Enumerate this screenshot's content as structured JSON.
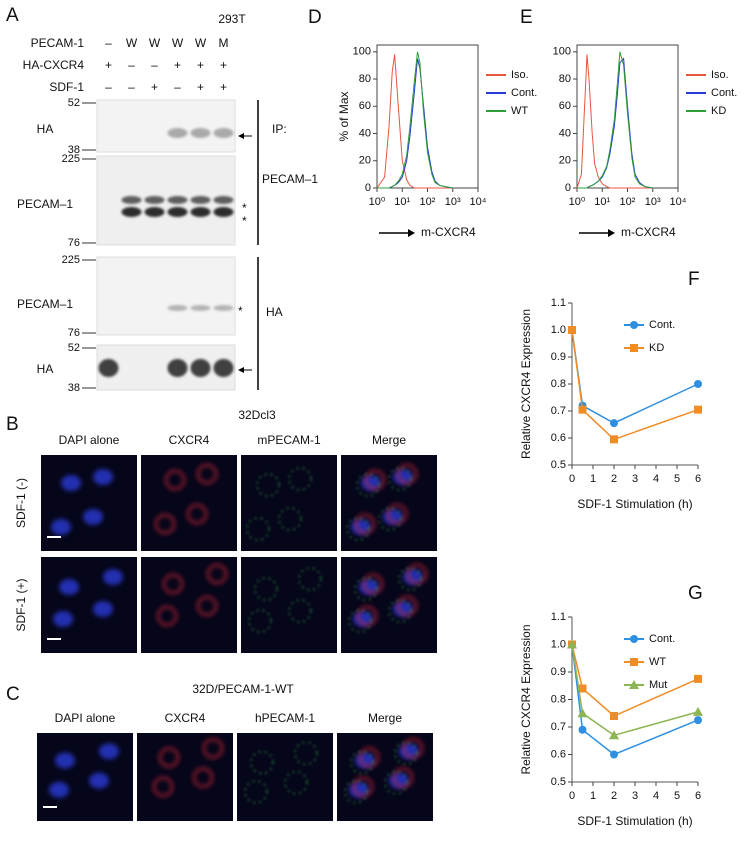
{
  "panel_a": {
    "label": "A",
    "cell_line": "293T",
    "conditions": [
      {
        "name": "PECAM-1",
        "lanes": [
          "–",
          "W",
          "W",
          "W",
          "W",
          "M"
        ]
      },
      {
        "name": "HA-CXCR4",
        "lanes": [
          "+",
          "–",
          "–",
          "+",
          "+",
          "+"
        ]
      },
      {
        "name": "SDF-1",
        "lanes": [
          "–",
          "–",
          "+",
          "–",
          "+",
          "+"
        ]
      }
    ],
    "blots": [
      {
        "name": "HA",
        "markers": [
          52,
          38
        ]
      },
      {
        "name": "PECAM–1",
        "markers": [
          225,
          76
        ]
      },
      {
        "name": "PECAM–1",
        "markers": [
          225,
          76
        ]
      },
      {
        "name": "HA",
        "markers": [
          52,
          38
        ]
      }
    ],
    "ip_label": "IP:",
    "ip_groups": [
      "PECAM–1",
      "HA"
    ],
    "asterisks": [
      "*",
      "*",
      "*"
    ]
  },
  "panel_b": {
    "label": "B",
    "title": "32Dcl3",
    "columns": [
      "DAPI alone",
      "CXCR4",
      "mPECAM-1",
      "Merge"
    ],
    "rows": [
      "SDF-1 (-)",
      "SDF-1 (+)"
    ]
  },
  "panel_c": {
    "label": "C",
    "title": "32D/PECAM-1-WT",
    "columns": [
      "DAPI alone",
      "CXCR4",
      "hPECAM-1",
      "Merge"
    ]
  },
  "chart_data": [
    {
      "type": "line",
      "panel_label": "D",
      "xlabel": "m-CXCR4",
      "ylabel": "% of Max",
      "xscale": "log",
      "frame": true,
      "legend": "right",
      "xlim": [
        1,
        10000
      ],
      "xticks": [
        {
          "value": 1,
          "label": "10⁰"
        },
        {
          "value": 10,
          "label": "10¹"
        },
        {
          "value": 100,
          "label": "10²"
        },
        {
          "value": 1000,
          "label": "10³"
        },
        {
          "value": 10000,
          "label": "10⁴"
        }
      ],
      "ylim": [
        0,
        105
      ],
      "yticks": [
        0,
        20,
        40,
        60,
        80,
        100
      ],
      "x": [
        1,
        2,
        3,
        4,
        5,
        7,
        10,
        15,
        20,
        30,
        40,
        50,
        70,
        100,
        150,
        200,
        300,
        500,
        1000
      ],
      "series": [
        {
          "name": "Iso.",
          "color": "#e8553f",
          "values": [
            0,
            8,
            45,
            85,
            98,
            60,
            20,
            6,
            2,
            0,
            0,
            0,
            0,
            0,
            0,
            0,
            0,
            0,
            0
          ]
        },
        {
          "name": "Cont.",
          "color": "#2a3bd6",
          "values": [
            0,
            0,
            0,
            1,
            2,
            4,
            8,
            20,
            38,
            70,
            95,
            88,
            60,
            30,
            12,
            5,
            2,
            1,
            0
          ]
        },
        {
          "name": "WT",
          "color": "#2e9e3a",
          "values": [
            0,
            0,
            0,
            1,
            2,
            5,
            10,
            24,
            45,
            78,
            100,
            92,
            55,
            26,
            10,
            4,
            2,
            1,
            0
          ]
        }
      ]
    },
    {
      "type": "line",
      "panel_label": "E",
      "xlabel": "m-CXCR4",
      "xscale": "log",
      "frame": true,
      "legend": "right",
      "xlim": [
        1,
        10000
      ],
      "xticks": [
        {
          "value": 1,
          "label": "10⁰"
        },
        {
          "value": 10,
          "label": "10¹"
        },
        {
          "value": 100,
          "label": "10²"
        },
        {
          "value": 1000,
          "label": "10³"
        },
        {
          "value": 10000,
          "label": "10⁴"
        }
      ],
      "ylim": [
        0,
        105
      ],
      "yticks": [
        0,
        20,
        40,
        60,
        80,
        100
      ],
      "x": [
        1,
        1.5,
        2,
        2.5,
        3,
        4,
        5,
        7,
        10,
        15,
        20,
        30,
        40,
        50,
        70,
        100,
        150,
        200,
        300,
        500,
        1000
      ],
      "series": [
        {
          "name": "Iso.",
          "color": "#e8553f",
          "values": [
            0,
            10,
            60,
            98,
            80,
            40,
            18,
            8,
            3,
            1,
            0,
            0,
            0,
            0,
            0,
            0,
            0,
            0,
            0,
            0,
            0
          ]
        },
        {
          "name": "Cont.",
          "color": "#2a3bd6",
          "values": [
            0,
            0,
            0,
            0,
            1,
            2,
            3,
            5,
            8,
            15,
            25,
            45,
            70,
            92,
            95,
            60,
            25,
            10,
            4,
            1,
            0
          ]
        },
        {
          "name": "KD",
          "color": "#2e9e3a",
          "values": [
            0,
            0,
            0,
            0,
            1,
            2,
            3,
            5,
            9,
            16,
            28,
            50,
            78,
            100,
            90,
            55,
            22,
            8,
            3,
            1,
            0
          ]
        }
      ]
    },
    {
      "type": "line",
      "panel_label": "F",
      "xlabel": "SDF-1 Stimulation (h)",
      "ylabel": "Relative CXCR4  Expression",
      "legend": "upper right",
      "xlim": [
        0,
        6
      ],
      "xticks": [
        0,
        1,
        2,
        3,
        4,
        5,
        6
      ],
      "ylim": [
        0.5,
        1.1
      ],
      "yticks": [
        0.5,
        0.6,
        0.7,
        0.8,
        0.9,
        {
          "value": 1,
          "label": "1.0"
        },
        1.1
      ],
      "x": [
        0,
        0.5,
        2,
        6
      ],
      "series": [
        {
          "name": "Cont.",
          "color": "#2f8fe0",
          "marker": "circle",
          "values": [
            1.0,
            0.72,
            0.655,
            0.8
          ]
        },
        {
          "name": "KD",
          "color": "#f08c26",
          "marker": "square",
          "values": [
            1.0,
            0.705,
            0.595,
            0.705
          ]
        }
      ]
    },
    {
      "type": "line",
      "panel_label": "G",
      "xlabel": "SDF-1 Stimulation (h)",
      "ylabel": "Relative CXCR4  Expression",
      "legend": "upper right",
      "xlim": [
        0,
        6
      ],
      "xticks": [
        0,
        1,
        2,
        3,
        4,
        5,
        6
      ],
      "ylim": [
        0.5,
        1.1
      ],
      "yticks": [
        0.5,
        0.6,
        0.7,
        0.8,
        0.9,
        {
          "value": 1,
          "label": "1.0"
        },
        1.1
      ],
      "x": [
        0,
        0.5,
        2,
        6
      ],
      "series": [
        {
          "name": "Cont.",
          "color": "#2f8fe0",
          "marker": "circle",
          "values": [
            1.0,
            0.69,
            0.6,
            0.725
          ]
        },
        {
          "name": "WT",
          "color": "#f08c26",
          "marker": "square",
          "values": [
            1.0,
            0.84,
            0.74,
            0.875
          ]
        },
        {
          "name": "Mut",
          "color": "#8db554",
          "marker": "triangle",
          "values": [
            1.0,
            0.75,
            0.67,
            0.755
          ]
        }
      ]
    }
  ]
}
